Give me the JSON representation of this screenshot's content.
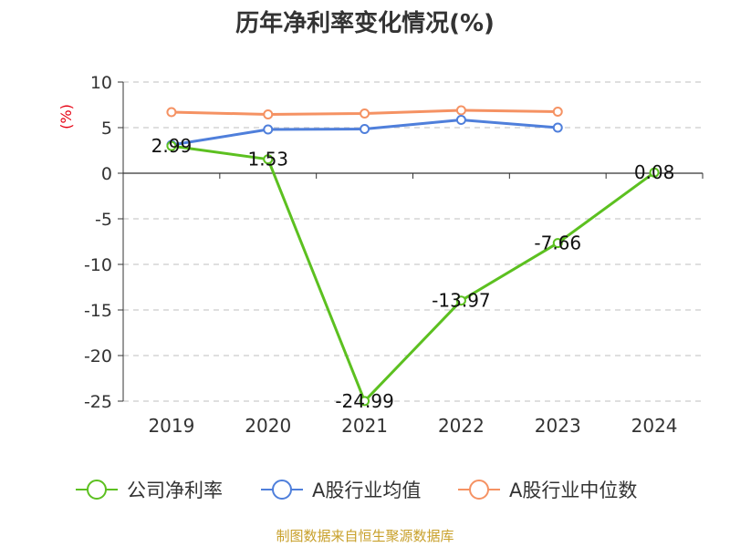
{
  "chart_data": {
    "type": "line",
    "title": "历年净利率变化情况(%)",
    "ylabel": "(%)",
    "xlabel": "",
    "categories": [
      "2019",
      "2020",
      "2021",
      "2022",
      "2023",
      "2024"
    ],
    "ylim": [
      -25,
      10
    ],
    "yticks": [
      10,
      5,
      0,
      -5,
      -10,
      -15,
      -20,
      -25
    ],
    "grid": true,
    "legend_position": "bottom",
    "series": [
      {
        "name": "公司净利率",
        "color": "#5cc020",
        "values": [
          2.99,
          1.53,
          -24.99,
          -13.97,
          -7.66,
          0.08
        ],
        "labels": [
          "2.99",
          "1.53",
          "-24.99",
          "-13.97",
          "-7.66",
          "0.08"
        ]
      },
      {
        "name": "A股行业均值",
        "color": "#4f7fdb",
        "values": [
          3.1,
          4.8,
          4.85,
          5.85,
          5.0,
          null
        ]
      },
      {
        "name": "A股行业中位数",
        "color": "#f59263",
        "values": [
          6.7,
          6.45,
          6.55,
          6.9,
          6.75,
          null
        ]
      }
    ]
  },
  "source": "制图数据来自恒生聚源数据库"
}
